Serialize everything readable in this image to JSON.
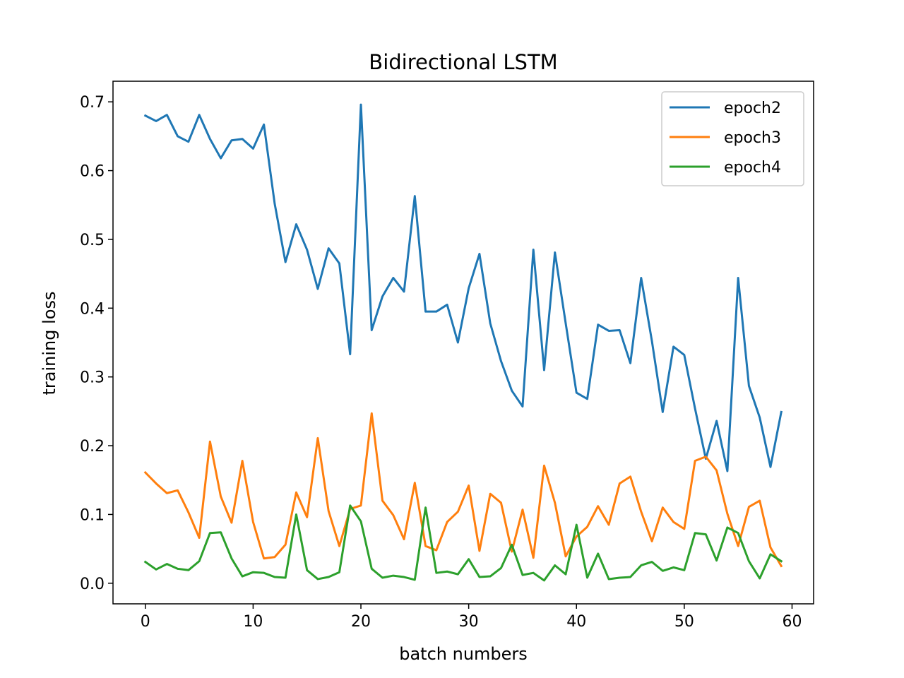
{
  "chart_data": {
    "type": "line",
    "title": "Bidirectional LSTM",
    "xlabel": "batch numbers",
    "ylabel": "training loss",
    "xlim": [
      -3,
      62
    ],
    "ylim": [
      -0.03,
      0.73
    ],
    "xticks": [
      0,
      10,
      20,
      30,
      40,
      50,
      60
    ],
    "yticks": [
      0.0,
      0.1,
      0.2,
      0.3,
      0.4,
      0.5,
      0.6,
      0.7
    ],
    "xtick_labels": [
      "0",
      "10",
      "20",
      "30",
      "40",
      "50",
      "60"
    ],
    "ytick_labels": [
      "0.0",
      "0.1",
      "0.2",
      "0.3",
      "0.4",
      "0.5",
      "0.6",
      "0.7"
    ],
    "grid": false,
    "legend_position": "top-right",
    "series": [
      {
        "name": "epoch2",
        "color": "#1f77b4",
        "values": [
          0.68,
          0.672,
          0.681,
          0.65,
          0.642,
          0.681,
          0.646,
          0.618,
          0.644,
          0.646,
          0.632,
          0.667,
          0.552,
          0.467,
          0.522,
          0.485,
          0.428,
          0.487,
          0.465,
          0.333,
          0.696,
          0.368,
          0.417,
          0.444,
          0.424,
          0.563,
          0.395,
          0.395,
          0.405,
          0.35,
          0.429,
          0.479,
          0.378,
          0.323,
          0.28,
          0.257,
          0.485,
          0.31,
          0.481,
          0.378,
          0.277,
          0.268,
          0.376,
          0.367,
          0.368,
          0.32,
          0.444,
          0.352,
          0.249,
          0.344,
          0.332,
          0.254,
          0.181,
          0.236,
          0.163,
          0.444,
          0.287,
          0.241,
          0.169,
          0.249
        ]
      },
      {
        "name": "epoch3",
        "color": "#ff7f0e",
        "values": [
          0.161,
          0.145,
          0.131,
          0.135,
          0.103,
          0.066,
          0.206,
          0.126,
          0.088,
          0.178,
          0.089,
          0.036,
          0.038,
          0.056,
          0.132,
          0.096,
          0.211,
          0.105,
          0.054,
          0.108,
          0.113,
          0.247,
          0.12,
          0.099,
          0.064,
          0.146,
          0.054,
          0.048,
          0.089,
          0.104,
          0.142,
          0.047,
          0.13,
          0.117,
          0.046,
          0.107,
          0.037,
          0.171,
          0.117,
          0.039,
          0.068,
          0.082,
          0.112,
          0.085,
          0.145,
          0.155,
          0.104,
          0.061,
          0.11,
          0.089,
          0.079,
          0.178,
          0.184,
          0.164,
          0.101,
          0.054,
          0.111,
          0.12,
          0.052,
          0.025
        ]
      },
      {
        "name": "epoch4",
        "color": "#2ca02c",
        "values": [
          0.031,
          0.02,
          0.028,
          0.021,
          0.019,
          0.032,
          0.073,
          0.074,
          0.036,
          0.01,
          0.016,
          0.015,
          0.009,
          0.008,
          0.1,
          0.019,
          0.006,
          0.009,
          0.016,
          0.113,
          0.09,
          0.021,
          0.008,
          0.011,
          0.009,
          0.005,
          0.11,
          0.015,
          0.017,
          0.013,
          0.035,
          0.009,
          0.01,
          0.022,
          0.056,
          0.012,
          0.015,
          0.004,
          0.026,
          0.013,
          0.085,
          0.008,
          0.043,
          0.006,
          0.008,
          0.009,
          0.026,
          0.031,
          0.018,
          0.023,
          0.019,
          0.073,
          0.071,
          0.033,
          0.081,
          0.073,
          0.032,
          0.007,
          0.042,
          0.032
        ]
      }
    ]
  }
}
